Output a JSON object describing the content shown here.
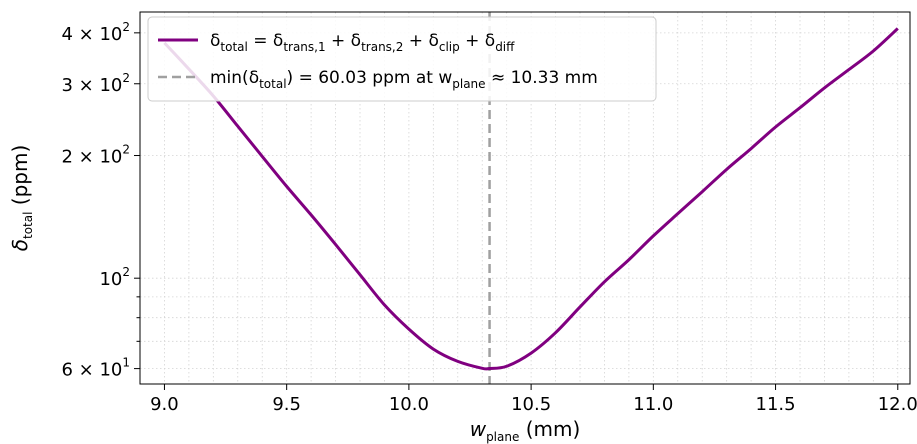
{
  "chart_data": {
    "type": "line",
    "title": "",
    "xlabel": {
      "base": "w",
      "sub": "plane",
      "unit": "(mm)"
    },
    "ylabel": {
      "base": "δ",
      "sub": "total",
      "unit": "(ppm)"
    },
    "y_scale": "log",
    "grid": true,
    "legend_placement": "upper-left",
    "xlim": [
      8.9,
      12.05
    ],
    "ylim": [
      55,
      450
    ],
    "x_ticks": [
      {
        "value": 9.0,
        "label": "9.0"
      },
      {
        "value": 9.5,
        "label": "9.5"
      },
      {
        "value": 10.0,
        "label": "10.0"
      },
      {
        "value": 10.5,
        "label": "10.5"
      },
      {
        "value": 11.0,
        "label": "11.0"
      },
      {
        "value": 11.5,
        "label": "11.5"
      },
      {
        "value": 12.0,
        "label": "12.0"
      }
    ],
    "y_ticks": [
      {
        "value": 60,
        "mant": "6 × 10",
        "exp": "1"
      },
      {
        "value": 100,
        "mant": "10",
        "exp": "2"
      },
      {
        "value": 200,
        "mant": "2 × 10",
        "exp": "2"
      },
      {
        "value": 300,
        "mant": "3 × 10",
        "exp": "2"
      },
      {
        "value": 400,
        "mant": "4 × 10",
        "exp": "2"
      }
    ],
    "y_minor_ticks": [
      70,
      80,
      90
    ],
    "series": [
      {
        "name": "δtotal = δtrans,1 + δtrans,2 + δclip + δdiff",
        "color": "#800080",
        "x": [
          9.0,
          9.1,
          9.2,
          9.3,
          9.4,
          9.5,
          9.6,
          9.7,
          9.8,
          9.9,
          10.0,
          10.1,
          10.2,
          10.3,
          10.33,
          10.4,
          10.5,
          10.6,
          10.7,
          10.8,
          10.9,
          11.0,
          11.1,
          11.2,
          11.3,
          11.4,
          11.5,
          11.6,
          11.7,
          11.8,
          11.9,
          12.0
        ],
        "y": [
          378,
          326,
          280,
          236,
          199,
          168,
          143,
          121,
          102,
          86,
          75,
          67,
          62.5,
          60.1,
          60.03,
          60.8,
          65.5,
          73.5,
          85,
          98,
          111,
          127,
          144,
          163,
          185,
          208,
          235,
          262,
          293,
          325,
          361,
          410
        ]
      }
    ],
    "vline": {
      "x": 10.33,
      "color": "#a0a0a0",
      "style": "dashed"
    },
    "legend": [
      {
        "kind": "line",
        "color": "#800080",
        "parts": [
          {
            "t": "δ"
          },
          {
            "t": "total",
            "sub": true
          },
          {
            "t": " = δ"
          },
          {
            "t": "trans,1",
            "sub": true
          },
          {
            "t": " + δ"
          },
          {
            "t": "trans,2",
            "sub": true
          },
          {
            "t": " + δ"
          },
          {
            "t": "clip",
            "sub": true
          },
          {
            "t": " + δ"
          },
          {
            "t": "diff",
            "sub": true
          }
        ]
      },
      {
        "kind": "dashed",
        "color": "#a0a0a0",
        "parts": [
          {
            "t": "min(δ"
          },
          {
            "t": "total",
            "sub": true
          },
          {
            "t": ") = 60.03 ppm at w"
          },
          {
            "t": "plane",
            "sub": true
          },
          {
            "t": " ≈ 10.33 mm"
          }
        ]
      }
    ]
  }
}
